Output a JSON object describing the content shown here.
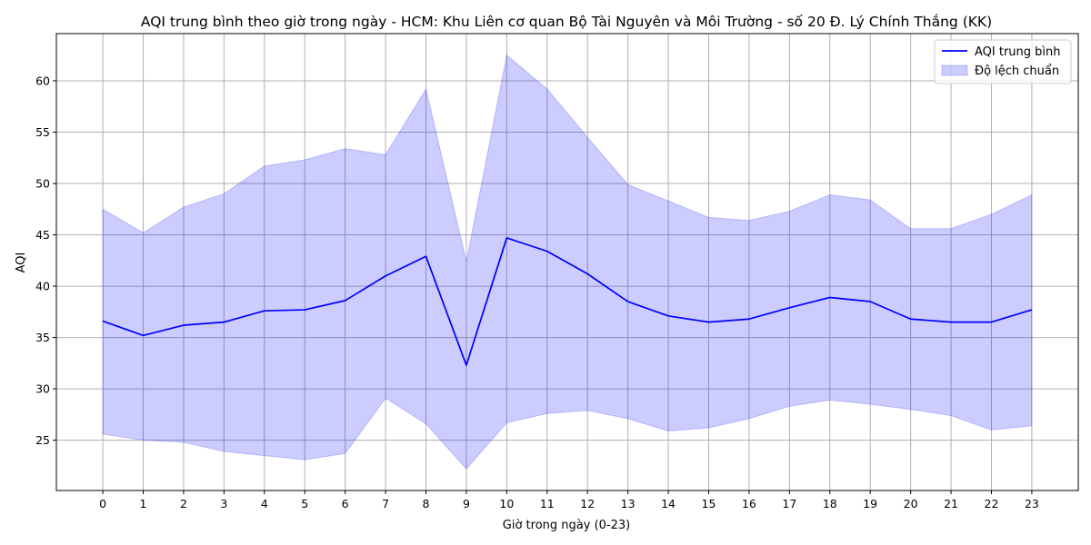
{
  "chart_data": {
    "type": "line",
    "title": "AQI trung bình theo giờ trong ngày - HCM: Khu Liên cơ quan Bộ Tài Nguyên và Môi Trường - số 20 Đ. Lý Chính Thắng (KK)",
    "xlabel": "Giờ trong ngày (0-23)",
    "ylabel": "AQI",
    "x": [
      0,
      1,
      2,
      3,
      4,
      5,
      6,
      7,
      8,
      9,
      10,
      11,
      12,
      13,
      14,
      15,
      16,
      17,
      18,
      19,
      20,
      21,
      22,
      23
    ],
    "x_ticks": [
      "0",
      "1",
      "2",
      "3",
      "4",
      "5",
      "6",
      "7",
      "8",
      "9",
      "10",
      "11",
      "12",
      "13",
      "14",
      "15",
      "16",
      "17",
      "18",
      "19",
      "20",
      "21",
      "22",
      "23"
    ],
    "y_ticks": [
      25,
      30,
      35,
      40,
      45,
      50,
      55,
      60
    ],
    "y_tick_labels": [
      "25",
      "30",
      "35",
      "40",
      "45",
      "50",
      "55",
      "60"
    ],
    "xlim": [
      -1.15,
      24.15
    ],
    "ylim": [
      20.1,
      64.6
    ],
    "grid": true,
    "legend_position": "top-right",
    "series": [
      {
        "name": "AQI trung bình",
        "kind": "line",
        "color": "#0000ff",
        "values": [
          36.6,
          35.2,
          36.2,
          36.5,
          37.6,
          37.7,
          38.6,
          41.0,
          42.9,
          32.3,
          44.7,
          43.4,
          41.2,
          38.5,
          37.1,
          36.5,
          36.8,
          37.9,
          38.9,
          38.5,
          36.8,
          36.5,
          36.5,
          37.7
        ]
      },
      {
        "name": "Độ lệch chuẩn",
        "kind": "band",
        "color": "#0000ff",
        "upper": [
          47.5,
          45.2,
          47.7,
          49.0,
          51.7,
          52.3,
          53.4,
          52.8,
          59.2,
          42.4,
          62.5,
          59.2,
          54.5,
          49.9,
          48.3,
          46.7,
          46.4,
          47.3,
          48.9,
          48.4,
          45.6,
          45.6,
          47.0,
          48.9
        ],
        "lower": [
          25.6,
          25.0,
          24.8,
          23.9,
          23.5,
          23.1,
          23.7,
          29.1,
          26.6,
          22.2,
          26.7,
          27.6,
          27.9,
          27.1,
          25.9,
          26.2,
          27.1,
          28.3,
          28.9,
          28.5,
          28.0,
          27.4,
          26.0,
          26.4
        ]
      }
    ]
  }
}
